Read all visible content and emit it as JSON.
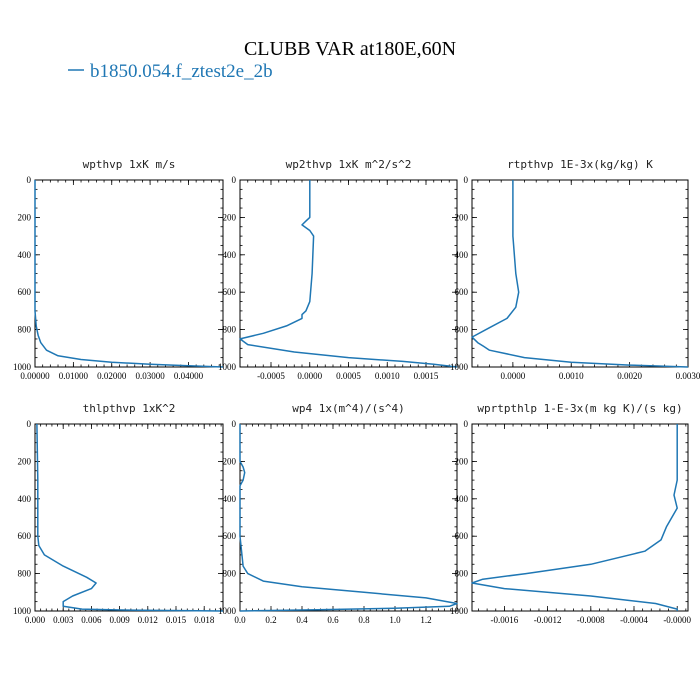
{
  "figure": {
    "title": "CLUBB VAR at180E,60N",
    "legend_label": "b1850.054.f_ztest2e_2b",
    "line_color": "#1f77b4"
  },
  "chart_data": [
    {
      "type": "line",
      "title": "wpthvp   1xK m/s",
      "xlim": [
        0,
        0.049
      ],
      "ylim": [
        1000,
        0
      ],
      "xticks": [
        0,
        0.01,
        0.02,
        0.03,
        0.04
      ],
      "xtick_labels": [
        "0.00000",
        "0.01000",
        "0.02000",
        "0.03000",
        "0.04000"
      ],
      "yticks": [
        0,
        200,
        400,
        600,
        800,
        1000
      ],
      "ytick_labels": [
        "0",
        "200",
        "400",
        "600",
        "800",
        "1000"
      ],
      "series": [
        {
          "x": [
            0,
            0,
            0,
            0.0003,
            0.0008,
            0.0015,
            0.003,
            0.006,
            0.012,
            0.02,
            0.03,
            0.04,
            0.049
          ],
          "y": [
            0,
            400,
            700,
            780,
            830,
            870,
            910,
            940,
            960,
            975,
            985,
            993,
            1000
          ]
        }
      ]
    },
    {
      "type": "line",
      "title": "wp2thvp   1xK m^2/s^2",
      "xlim": [
        -0.0009,
        0.0019
      ],
      "ylim": [
        1000,
        0
      ],
      "xticks": [
        -0.0005,
        0,
        0.0005,
        0.001,
        0.0015
      ],
      "xtick_labels": [
        "-0.0005",
        "0.0000",
        "0.0005",
        "0.0010",
        "0.0015"
      ],
      "yticks": [
        0,
        200,
        400,
        600,
        800,
        1000
      ],
      "ytick_labels": [
        "0",
        "200",
        "400",
        "600",
        "800",
        "1000"
      ],
      "series": [
        {
          "x": [
            0,
            0,
            0,
            -5e-05,
            -0.0001,
            0,
            5e-05,
            3e-05,
            0,
            -5e-05,
            -0.0001,
            -0.0001,
            -0.0003,
            -0.0006,
            -0.0009,
            -0.0008,
            -0.0002,
            0.0005,
            0.0012,
            0.0016,
            0.0019
          ],
          "y": [
            0,
            100,
            200,
            220,
            240,
            270,
            300,
            500,
            650,
            700,
            720,
            740,
            780,
            820,
            850,
            880,
            920,
            950,
            970,
            985,
            1000
          ]
        }
      ]
    },
    {
      "type": "line",
      "title": "rtpthvp   1E-3x(kg/kg) K",
      "xlim": [
        -0.0007,
        0.003
      ],
      "ylim": [
        1000,
        0
      ],
      "xticks": [
        0,
        0.001,
        0.002,
        0.003
      ],
      "xtick_labels": [
        "0.0000",
        "0.0010",
        "0.0020",
        "0.0030"
      ],
      "yticks": [
        0,
        200,
        400,
        600,
        800,
        1000
      ],
      "ytick_labels": [
        "0",
        "200",
        "400",
        "600",
        "800",
        "1000"
      ],
      "series": [
        {
          "x": [
            0,
            0,
            5e-05,
            0.0001,
            5e-05,
            -0.0001,
            -0.0004,
            -0.0007,
            -0.0006,
            -0.0005,
            -0.0004,
            0.0002,
            0.001,
            0.002,
            0.003
          ],
          "y": [
            0,
            300,
            500,
            600,
            680,
            740,
            790,
            840,
            870,
            890,
            910,
            950,
            975,
            990,
            1000
          ]
        }
      ]
    },
    {
      "type": "line",
      "title": "thlpthvp   1xK^2",
      "xlim": [
        0,
        0.02
      ],
      "ylim": [
        1000,
        0
      ],
      "xticks": [
        0,
        0.003,
        0.006,
        0.009,
        0.012,
        0.015,
        0.018
      ],
      "xtick_labels": [
        "0.000",
        "0.003",
        "0.006",
        "0.009",
        "0.012",
        "0.015",
        "0.018"
      ],
      "yticks": [
        0,
        200,
        400,
        600,
        800,
        1000
      ],
      "ytick_labels": [
        "0",
        "200",
        "400",
        "600",
        "800",
        "1000"
      ],
      "series": [
        {
          "x": [
            0.0002,
            0.0003,
            0.0003,
            0.0004,
            0.001,
            0.003,
            0.0055,
            0.0065,
            0.006,
            0.004,
            0.003,
            0.003,
            0.005,
            0.01,
            0.02
          ],
          "y": [
            0,
            300,
            600,
            650,
            700,
            760,
            820,
            850,
            880,
            920,
            950,
            975,
            990,
            995,
            1000
          ]
        }
      ]
    },
    {
      "type": "line",
      "title": "wp4   1x(m^4)/(s^4)",
      "xlim": [
        0,
        1.4
      ],
      "ylim": [
        1000,
        0
      ],
      "xticks": [
        0,
        0.2,
        0.4,
        0.6,
        0.8,
        1.0,
        1.2
      ],
      "xtick_labels": [
        "0.0",
        "0.2",
        "0.4",
        "0.6",
        "0.8",
        "1.0",
        "1.2"
      ],
      "yticks": [
        0,
        200,
        400,
        600,
        800,
        1000
      ],
      "ytick_labels": [
        "0",
        "200",
        "400",
        "600",
        "800",
        "1000"
      ],
      "series": [
        {
          "x": [
            0,
            0,
            0.02,
            0.03,
            0.02,
            0,
            0,
            0.02,
            0.05,
            0.15,
            0.4,
            0.8,
            1.2,
            1.4,
            1.35,
            1.0,
            0.5,
            0
          ],
          "y": [
            0,
            200,
            230,
            260,
            300,
            330,
            600,
            760,
            800,
            840,
            870,
            900,
            930,
            960,
            975,
            985,
            993,
            1000
          ]
        }
      ]
    },
    {
      "type": "line",
      "title": "wprtpthlp   1-E-3x(m kg K)/(s kg)",
      "xlim": [
        -0.0019,
        0.0001
      ],
      "ylim": [
        1000,
        0
      ],
      "xticks": [
        -0.0016,
        -0.0012,
        -0.0008,
        -0.0004,
        0
      ],
      "xtick_labels": [
        "-0.0016",
        "-0.0012",
        "-0.0008",
        "-0.0004",
        "-0.0000"
      ],
      "yticks": [
        0,
        200,
        400,
        600,
        800,
        1000
      ],
      "ytick_labels": [
        "0",
        "200",
        "400",
        "600",
        "800",
        "1000"
      ],
      "series": [
        {
          "x": [
            0,
            0,
            -3e-05,
            0,
            -0.0001,
            -0.00015,
            -0.0003,
            -0.0008,
            -0.0014,
            -0.0018,
            -0.0019,
            -0.0016,
            -0.0008,
            -0.0002,
            0,
            0
          ],
          "y": [
            0,
            300,
            380,
            450,
            550,
            620,
            680,
            750,
            800,
            830,
            850,
            880,
            920,
            960,
            990,
            1000
          ]
        }
      ]
    }
  ]
}
